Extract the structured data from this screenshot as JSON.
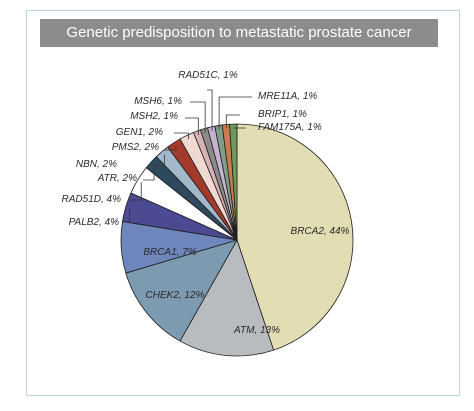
{
  "title": "Genetic predisposition to metastatic prostate cancer",
  "chart_data": {
    "type": "pie",
    "slices": [
      {
        "label": "BRCA2, 44%",
        "value": 44,
        "color": "#e2ddb3"
      },
      {
        "label": "ATM, 13%",
        "value": 13,
        "color": "#b9bcbf"
      },
      {
        "label": "CHEK2, 12%",
        "value": 12,
        "color": "#7c9ab0"
      },
      {
        "label": "BRCA1, 7%",
        "value": 7,
        "color": "#6f86bd"
      },
      {
        "label": "PALB2, 4%",
        "value": 4,
        "color": "#4b4a93"
      },
      {
        "label": "RAD51D, 4%",
        "value": 4,
        "color": "#ffffff"
      },
      {
        "label": "ATR, 2%",
        "value": 2,
        "color": "#2e4a5f"
      },
      {
        "label": "NBN, 2%",
        "value": 2,
        "color": "#a4b8cc"
      },
      {
        "label": "PMS2, 2%",
        "value": 2,
        "color": "#a33a2c"
      },
      {
        "label": "GEN1, 2%",
        "value": 2,
        "color": "#efd9d2"
      },
      {
        "label": "MSH2, 1%",
        "value": 1,
        "color": "#d8b3b5"
      },
      {
        "label": "MSH6, 1%",
        "value": 1,
        "color": "#8c8a8b"
      },
      {
        "label": "RAD51C, 1%",
        "value": 1,
        "color": "#c6b3d1"
      },
      {
        "label": "MRE11A, 1%",
        "value": 1,
        "color": "#7f9d88"
      },
      {
        "label": "BRIP1, 1%",
        "value": 1,
        "color": "#c97b4d"
      },
      {
        "label": "FAM175A, 1%",
        "value": 1,
        "color": "#6f9a5a"
      }
    ]
  }
}
